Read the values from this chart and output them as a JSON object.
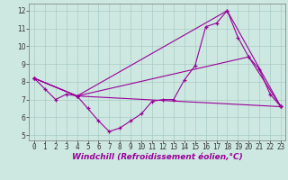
{
  "xlabel": "Windchill (Refroidissement éolien,°C)",
  "background_color": "#cde8e0",
  "grid_color": "#a8ccc4",
  "line_color": "#990099",
  "xlim": [
    -0.5,
    23.4
  ],
  "ylim": [
    4.7,
    12.4
  ],
  "yticks": [
    5,
    6,
    7,
    8,
    9,
    10,
    11,
    12
  ],
  "xticks": [
    0,
    1,
    2,
    3,
    4,
    5,
    6,
    7,
    8,
    9,
    10,
    11,
    12,
    13,
    14,
    15,
    16,
    17,
    18,
    19,
    20,
    21,
    22,
    23
  ],
  "main_x": [
    0,
    1,
    2,
    3,
    4,
    5,
    6,
    7,
    8,
    9,
    10,
    11,
    12,
    13,
    14,
    15,
    16,
    17,
    18,
    19,
    20,
    21,
    22,
    23
  ],
  "main_y": [
    8.2,
    7.6,
    7.0,
    7.3,
    7.2,
    6.5,
    5.8,
    5.2,
    5.4,
    5.8,
    6.2,
    6.9,
    7.0,
    7.0,
    8.1,
    8.9,
    11.1,
    11.3,
    12.0,
    10.5,
    9.4,
    8.7,
    7.3,
    6.6
  ],
  "line2_x": [
    0,
    4,
    23
  ],
  "line2_y": [
    8.2,
    7.2,
    6.6
  ],
  "line3_x": [
    0,
    4,
    18,
    23
  ],
  "line3_y": [
    8.2,
    7.2,
    12.0,
    6.6
  ],
  "line4_x": [
    0,
    4,
    20,
    23
  ],
  "line4_y": [
    8.2,
    7.2,
    9.4,
    6.6
  ],
  "font_size_label": 6.5,
  "font_size_tick": 5.5
}
